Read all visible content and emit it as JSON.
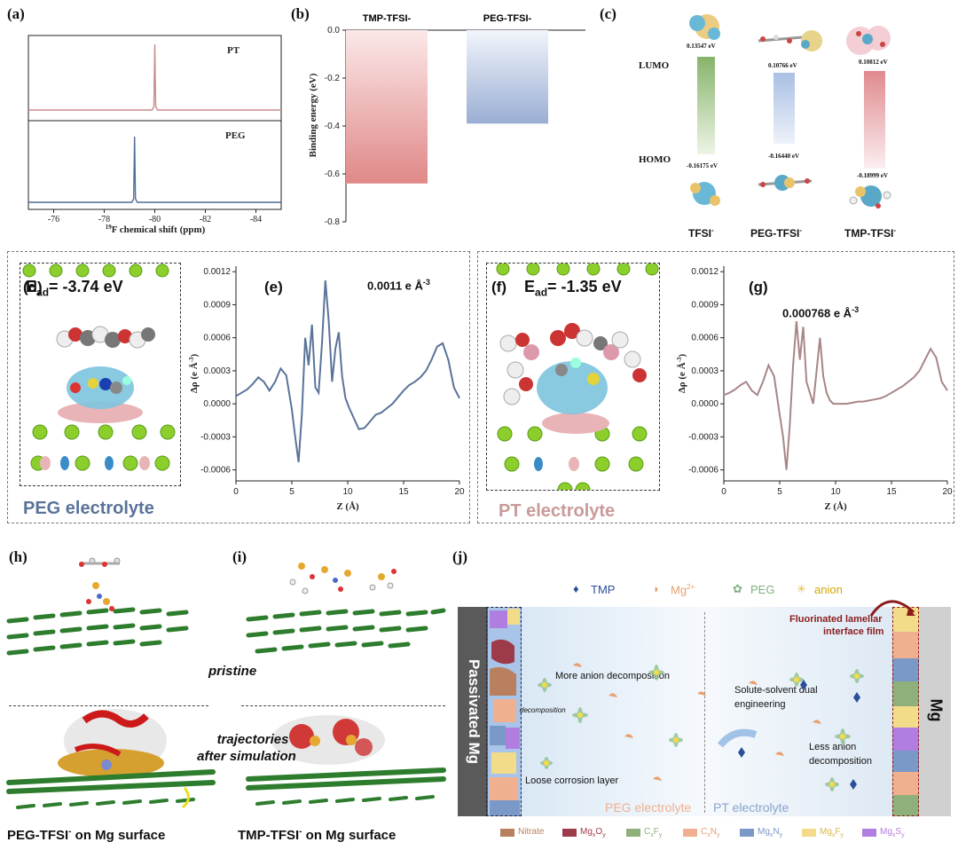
{
  "labels": {
    "a": "(a)",
    "b": "(b)",
    "c": "(c)",
    "d": "(d)",
    "e": "(e)",
    "f": "(f)",
    "g": "(g)",
    "h": "(h)",
    "i": "(i)",
    "j": "(j)"
  },
  "panel_a": {
    "trace_top": "PT",
    "trace_bottom": "PEG",
    "xlabel_sup": "19",
    "xlabel": "F chemical shift (ppm)",
    "xticks": [
      "-76",
      "-78",
      "-80",
      "-82",
      "-84"
    ],
    "colors": {
      "PT": "#c98c8c",
      "PEG": "#4f6e98"
    }
  },
  "panel_c": {
    "lumo": "LUMO",
    "homo": "HOMO",
    "lumo_vals": [
      "0.13547 eV",
      "0.10766 eV",
      "0.10812 eV"
    ],
    "homo_vals": [
      "-0.16175 eV",
      "-0.16440 eV",
      "-0.18999 eV"
    ],
    "names": [
      "TFSI",
      "PEG-TFSI",
      "TMP-TFSI"
    ],
    "sup": "-"
  },
  "panel_d": {
    "energy_sub": "ad",
    "energy_val": "= -3.74 eV",
    "caption": "PEG electrolyte"
  },
  "panel_f": {
    "energy_sub": "ad",
    "energy_val": "= -1.35 eV",
    "caption": "PT electrolyte"
  },
  "panel_e": {
    "annotation": "0.0011 e Å",
    "ann_sup": "-3",
    "ylabel": "Δρ (e Å",
    "ylabel_sup": "-3",
    "ylabel_end": ")",
    "xlabel": "Z (Å)"
  },
  "panel_g": {
    "annotation": "0.000768 e Å",
    "ann_sup": "-3",
    "ylabel": "Δρ (e Å",
    "ylabel_sup": "-3",
    "ylabel_end": ")",
    "xlabel": "Z (Å)"
  },
  "panel_h": {
    "caption": "PEG-TFSI",
    "caption_sup": "-",
    "caption_end": " on Mg surface"
  },
  "panel_i": {
    "caption": "TMP-TFSI",
    "caption_sup": "-",
    "caption_end": " on Mg surface"
  },
  "middle": {
    "pristine": "pristine",
    "trajectories": "trajectories",
    "after": "after simulation"
  },
  "panel_j": {
    "legend_top": [
      {
        "label": "TMP",
        "color": "#2c4f9a"
      },
      {
        "label": "Mg",
        "sup": "2+",
        "color": "#e8a070"
      },
      {
        "label": "PEG",
        "color": "#7fb07f"
      },
      {
        "label": "anion",
        "color": "#e0c040"
      }
    ],
    "left_wall": "Passivated Mg",
    "right_wall": "Mg",
    "film_1": "Fluorinated lamellar",
    "film_2": "interface film",
    "more": "More anion decomposition",
    "decomposition": "decomposition",
    "dual_1": "Solute-solvent dual",
    "dual_2": "engineering",
    "less_1": "Less anion",
    "less_2": "decomposition",
    "loose": "Loose corrosion layer",
    "peg_el": "PEG electrolyte",
    "pt_el": "PT electrolyte",
    "legend_bottom": [
      {
        "label": "Nitrate",
        "color": "#b98060"
      },
      {
        "label": "Mg",
        "sub1": "x",
        "mid": "O",
        "sub2": "y",
        "color": "#9e3b4a"
      },
      {
        "label": "C",
        "sub1": "x",
        "mid": "F",
        "sub2": "y",
        "color": "#8fb07a"
      },
      {
        "label": "C",
        "sub1": "x",
        "mid": "N",
        "sub2": "y",
        "color": "#f0b090"
      },
      {
        "label": "Mg",
        "sub1": "x",
        "mid": "N",
        "sub2": "y",
        "color": "#7a98c8"
      },
      {
        "label": "Mg",
        "sub1": "x",
        "mid": "F",
        "sub2": "y",
        "color": "#f2dc8a"
      },
      {
        "label": "Mg",
        "sub1": "x",
        "mid": "S",
        "sub2": "y",
        "color": "#b07ee0"
      }
    ]
  },
  "chart_data": [
    {
      "id": "a",
      "type": "line",
      "xlabel": "19F chemical shift (ppm)",
      "xlim": [
        -75,
        -85
      ],
      "xticks": [
        -76,
        -78,
        -80,
        -82,
        -84
      ],
      "series": [
        {
          "name": "PT",
          "peak_x": -80.0
        },
        {
          "name": "PEG",
          "peak_x": -79.2
        }
      ]
    },
    {
      "id": "b",
      "type": "bar",
      "categories": [
        "TMP-TFSI-",
        "PEG-TFSI-"
      ],
      "values": [
        -0.64,
        -0.39
      ],
      "ylabel": "Binding energy (eV)",
      "ylim": [
        -0.8,
        0.0
      ],
      "yticks": [
        0.0,
        -0.2,
        -0.4,
        -0.6,
        -0.8
      ],
      "colors": [
        "#e09090",
        "#9aaed4"
      ]
    },
    {
      "id": "e",
      "type": "line",
      "xlabel": "Z (Å)",
      "ylabel": "Δρ (e Å-3)",
      "xlim": [
        0,
        20
      ],
      "ylim": [
        -0.0007,
        0.00125
      ],
      "xticks": [
        0,
        5,
        10,
        15,
        20
      ],
      "yticks": [
        -0.0006,
        -0.0003,
        0.0,
        0.0003,
        0.0006,
        0.0009,
        0.0012
      ],
      "color": "#5a7399",
      "x": [
        0,
        0.5,
        1,
        1.5,
        2,
        2.5,
        3,
        3.5,
        4,
        4.5,
        5,
        5.3,
        5.6,
        5.9,
        6.2,
        6.5,
        6.8,
        7.1,
        7.4,
        7.7,
        8,
        8.3,
        8.6,
        8.9,
        9.2,
        9.5,
        9.8,
        10.1,
        10.5,
        11,
        11.5,
        12,
        12.5,
        13,
        13.5,
        14,
        14.5,
        15,
        15.5,
        16,
        16.5,
        17,
        17.5,
        18,
        18.5,
        19,
        19.5,
        20
      ],
      "y": [
        7e-05,
        0.0001,
        0.00013,
        0.00018,
        0.00024,
        0.0002,
        0.00012,
        0.0002,
        0.00032,
        0.00026,
        -5e-05,
        -0.0003,
        -0.00053,
        -0.0001,
        0.0006,
        0.00035,
        0.00072,
        0.00015,
        0.0001,
        0.00055,
        0.00112,
        0.00075,
        0.0002,
        0.0005,
        0.00065,
        0.00025,
        5e-05,
        -3e-05,
        -0.00012,
        -0.00023,
        -0.00022,
        -0.00016,
        -0.0001,
        -8e-05,
        -4e-05,
        0.0,
        6e-05,
        0.00012,
        0.00017,
        0.0002,
        0.00024,
        0.0003,
        0.0004,
        0.00052,
        0.00055,
        0.0004,
        0.00015,
        5e-05
      ]
    },
    {
      "id": "g",
      "type": "line",
      "xlabel": "Z (Å)",
      "ylabel": "Δρ (e Å-3)",
      "xlim": [
        0,
        20
      ],
      "ylim": [
        -0.0007,
        0.00125
      ],
      "xticks": [
        0,
        5,
        10,
        15,
        20
      ],
      "yticks": [
        -0.0006,
        -0.0003,
        0.0,
        0.0003,
        0.0006,
        0.0009,
        0.0012
      ],
      "color": "#a88686",
      "x": [
        0,
        0.5,
        1,
        1.5,
        2,
        2.5,
        3,
        3.5,
        4,
        4.5,
        5,
        5.3,
        5.6,
        5.9,
        6.2,
        6.5,
        6.8,
        7.1,
        7.4,
        7.7,
        8,
        8.3,
        8.6,
        8.9,
        9.2,
        9.5,
        9.8,
        10.1,
        10.5,
        11,
        11.5,
        12,
        12.5,
        13,
        13.5,
        14,
        14.5,
        15,
        15.5,
        16,
        16.5,
        17,
        17.5,
        18,
        18.5,
        19,
        19.5,
        20
      ],
      "y": [
        8e-05,
        0.0001,
        0.00013,
        0.00017,
        0.0002,
        0.00012,
        8e-05,
        0.0002,
        0.00035,
        0.00025,
        -0.0001,
        -0.0003,
        -0.0006,
        -0.0002,
        0.00035,
        0.00075,
        0.0004,
        0.0007,
        0.0002,
        0.0001,
        0.0,
        0.0003,
        0.0006,
        0.00025,
        0.0001,
        3e-05,
        0.0,
        0.0,
        0.0,
        0.0,
        1e-05,
        2e-05,
        2e-05,
        3e-05,
        4e-05,
        5e-05,
        7e-05,
        0.0001,
        0.00013,
        0.00016,
        0.0002,
        0.00024,
        0.0003,
        0.0004,
        0.0005,
        0.00042,
        0.0002,
        0.00012
      ]
    }
  ]
}
